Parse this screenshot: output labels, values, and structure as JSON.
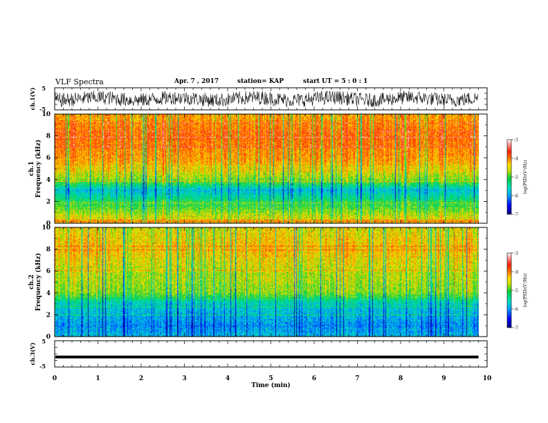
{
  "header": {
    "title": "VLF Spectra",
    "date": "Apr. 7 , 2017",
    "station": "station= KAP",
    "start": "start UT = 5 : 0 : 1"
  },
  "colors": {
    "scale": [
      "#000080",
      "#0000ff",
      "#00a0ff",
      "#00e0e0",
      "#00d060",
      "#80e000",
      "#e0e000",
      "#ffa000",
      "#ff3000",
      "#e00000",
      "#ffffff"
    ]
  },
  "chart_data": [
    {
      "type": "line",
      "name": "ch1-waveform",
      "ylabel": "ch.1(V)",
      "yticks": [
        "5",
        "-5"
      ],
      "ylim": [
        -5,
        5
      ],
      "xlim": [
        0,
        10
      ],
      "description_values": {
        "x_extent_min": [
          0,
          9.8
        ],
        "y_band": [
          -3.5,
          3.5
        ]
      }
    },
    {
      "type": "heatmap",
      "name": "ch1-spectrogram",
      "ylabel": "ch.1 Frequency (kHz)",
      "yticks": [
        "0",
        "2",
        "4",
        "6",
        "8",
        "10"
      ],
      "ylim": [
        0,
        10
      ],
      "xlim": [
        0,
        10
      ],
      "data_xmax": 9.8,
      "log_psd_profile_by_freq_khz": {
        "freqs": [
          0,
          1,
          2,
          3,
          4,
          6,
          8,
          10
        ],
        "levels": [
          -4.3,
          -4.8,
          -5.2,
          -5.8,
          -4.8,
          -4.1,
          -3.9,
          -4.2
        ]
      },
      "colorbar": {
        "label": "log(PSD)(V²/Hz)",
        "ticks": [
          "-3",
          "-4",
          "-5",
          "-6",
          "-7"
        ],
        "range": [
          -7,
          -3
        ]
      }
    },
    {
      "type": "heatmap",
      "name": "ch2-spectrogram",
      "ylabel": "ch.2 Frequency (kHz)",
      "yticks": [
        "0",
        "2",
        "4",
        "6",
        "8",
        "10"
      ],
      "ylim": [
        0,
        10
      ],
      "xlim": [
        0,
        10
      ],
      "data_xmax": 9.8,
      "log_psd_profile_by_freq_khz": {
        "freqs": [
          0,
          1,
          2,
          3,
          4,
          6,
          8,
          10
        ],
        "levels": [
          -5.8,
          -6.0,
          -5.8,
          -5.6,
          -4.8,
          -4.6,
          -4.3,
          -4.5
        ]
      },
      "colorbar": {
        "label": "log(PSD)(V²/Hz)",
        "ticks": [
          "-3",
          "-4",
          "-5",
          "-6",
          "-7"
        ],
        "range": [
          -7,
          -3
        ]
      }
    },
    {
      "type": "line",
      "name": "ch3-waveform",
      "ylabel": "ch.3(V)",
      "yticks": [
        "5",
        "-5"
      ],
      "ylim": [
        -5,
        5
      ],
      "xlim": [
        0,
        10
      ],
      "constant_value": -1.2,
      "xlabel": "Time (min)",
      "xticks": [
        "0",
        "1",
        "2",
        "3",
        "4",
        "5",
        "6",
        "7",
        "8",
        "9",
        "10"
      ]
    }
  ]
}
